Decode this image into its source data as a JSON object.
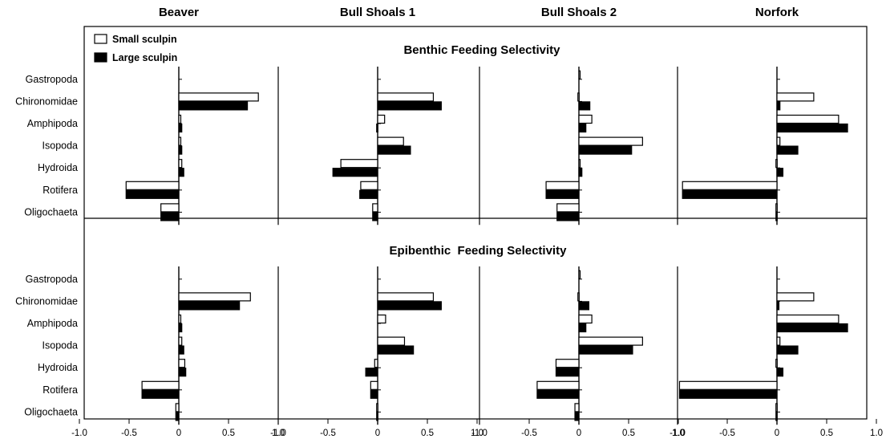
{
  "chart_data": {
    "type": "bar",
    "orientation": "horizontal",
    "columns": [
      "Beaver",
      "Bull Shoals 1",
      "Bull Shoals 2",
      "Norfork"
    ],
    "sections": [
      "Benthic Feeding Selectivity",
      "Epibenthic  Feeding Selectivity"
    ],
    "categories": [
      "Gastropoda",
      "Chironomidae",
      "Amphipoda",
      "Isopoda",
      "Hydroida",
      "Rotifera",
      "Oligochaeta"
    ],
    "xlim": [
      -1.0,
      1.0
    ],
    "x_ticks": [
      "-1.0",
      "-0.5",
      "0",
      "0.5",
      "1.0"
    ],
    "legend": {
      "position": "top-left",
      "entries": [
        {
          "label": "Small sculpin",
          "color": "#ffffff"
        },
        {
          "label": "Large sculpin",
          "color": "#000000"
        }
      ]
    },
    "panels": [
      {
        "section": "Benthic Feeding Selectivity",
        "column": "Beaver",
        "small": [
          0,
          0.8,
          0.02,
          0.02,
          0.03,
          -0.53,
          -0.18
        ],
        "large": [
          0,
          0.69,
          0.03,
          0.03,
          0.05,
          -0.53,
          -0.18
        ]
      },
      {
        "section": "Benthic Feeding Selectivity",
        "column": "Bull Shoals 1",
        "small": [
          0,
          0.56,
          0.07,
          0.26,
          -0.37,
          -0.17,
          -0.05
        ],
        "large": [
          0,
          0.64,
          -0.01,
          0.33,
          -0.45,
          -0.18,
          -0.05
        ]
      },
      {
        "section": "Benthic Feeding Selectivity",
        "column": "Bull Shoals 2",
        "small": [
          0.01,
          -0.01,
          0.13,
          0.64,
          0.01,
          -0.33,
          -0.22
        ],
        "large": [
          0,
          0.11,
          0.07,
          0.53,
          0.03,
          -0.33,
          -0.22
        ]
      },
      {
        "section": "Benthic Feeding Selectivity",
        "column": "Norfork",
        "small": [
          0,
          0.37,
          0.62,
          0.03,
          -0.01,
          -0.95,
          -0.01
        ],
        "large": [
          0,
          0.03,
          0.71,
          0.21,
          0.06,
          -0.95,
          -0.01
        ]
      },
      {
        "section": "Epibenthic  Feeding Selectivity",
        "column": "Beaver",
        "small": [
          0,
          0.72,
          0.02,
          0.03,
          0.06,
          -0.37,
          -0.03
        ],
        "large": [
          0,
          0.61,
          0.03,
          0.05,
          0.07,
          -0.37,
          -0.03
        ]
      },
      {
        "section": "Epibenthic  Feeding Selectivity",
        "column": "Bull Shoals 1",
        "small": [
          0,
          0.56,
          0.08,
          0.27,
          -0.03,
          -0.07,
          -0.01
        ],
        "large": [
          0,
          0.64,
          0,
          0.36,
          -0.12,
          -0.07,
          -0.01
        ]
      },
      {
        "section": "Epibenthic  Feeding Selectivity",
        "column": "Bull Shoals 2",
        "small": [
          0.01,
          -0.01,
          0.13,
          0.64,
          -0.23,
          -0.42,
          -0.04
        ],
        "large": [
          0,
          0.1,
          0.07,
          0.54,
          -0.23,
          -0.42,
          -0.04
        ]
      },
      {
        "section": "Epibenthic  Feeding Selectivity",
        "column": "Norfork",
        "small": [
          0,
          0.37,
          0.62,
          0.03,
          -0.01,
          -0.98,
          -0.01
        ],
        "large": [
          0,
          0.02,
          0.71,
          0.21,
          0.06,
          -0.98,
          -0.01
        ]
      }
    ]
  }
}
